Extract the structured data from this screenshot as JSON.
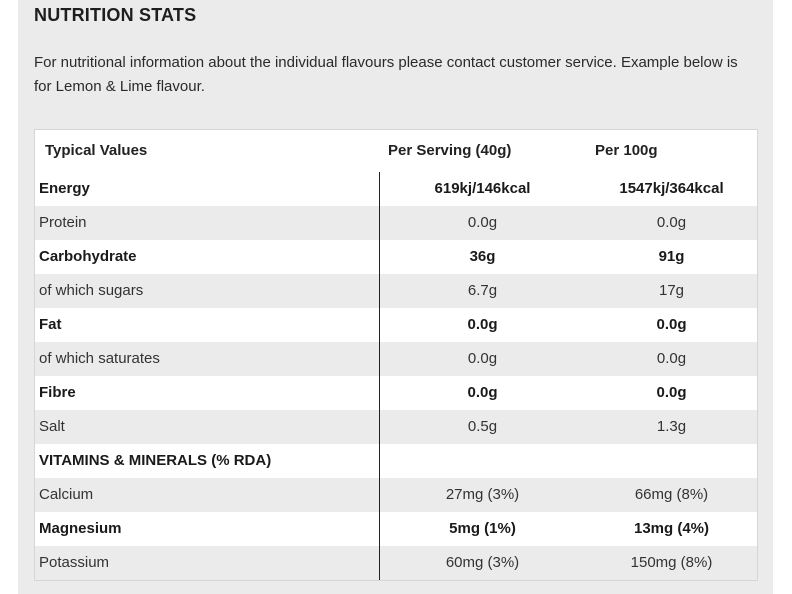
{
  "title": "NUTRITION STATS",
  "intro": "For nutritional information about the individual flavours please contact customer service. Example below is for Lemon & Lime flavour.",
  "table": {
    "headers": [
      "Typical Values",
      "Per Serving (40g)",
      "Per 100g"
    ],
    "rows": [
      {
        "label": "Energy",
        "serving": "619kj/146kcal",
        "per100": "1547kj/364kcal",
        "bold": true
      },
      {
        "label": "Protein",
        "serving": "0.0g",
        "per100": "0.0g",
        "bold": false
      },
      {
        "label": "Carbohydrate",
        "serving": "36g",
        "per100": "91g",
        "bold": true
      },
      {
        "label": "of which sugars",
        "serving": "6.7g",
        "per100": "17g",
        "bold": false
      },
      {
        "label": "Fat",
        "serving": "0.0g",
        "per100": "0.0g",
        "bold": true
      },
      {
        "label": "of which saturates",
        "serving": "0.0g",
        "per100": "0.0g",
        "bold": false
      },
      {
        "label": "Fibre",
        "serving": "0.0g",
        "per100": "0.0g",
        "bold": true
      },
      {
        "label": "Salt",
        "serving": "0.5g",
        "per100": "1.3g",
        "bold": false
      },
      {
        "label": "VITAMINS & MINERALS (% RDA)",
        "serving": "",
        "per100": "",
        "bold": true
      },
      {
        "label": "Calcium",
        "serving": "27mg (3%)",
        "per100": "66mg (8%)",
        "bold": false
      },
      {
        "label": "Magnesium",
        "serving": "5mg (1%)",
        "per100": "13mg (4%)",
        "bold": true
      },
      {
        "label": "Potassium",
        "serving": "60mg (3%)",
        "per100": "150mg (8%)",
        "bold": false
      }
    ]
  }
}
